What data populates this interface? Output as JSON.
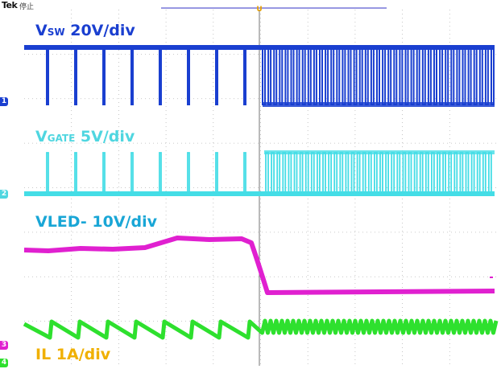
{
  "scope": {
    "brand": "Tek",
    "run_status": "停止",
    "trigger_marker": "U"
  },
  "channels": [
    {
      "id": "ch1",
      "marker": "1",
      "label_main": "V",
      "label_sub": "SW",
      "label_rest": " 20V/div",
      "color": "#1a3fd0"
    },
    {
      "id": "ch2",
      "marker": "2",
      "label_main": "V",
      "label_sub": "GATE",
      "label_rest": " 5V/div",
      "color": "#4fd6e0"
    },
    {
      "id": "ch3",
      "marker": "3",
      "label_main": "VLED- 10V/div",
      "label_sub": "",
      "label_rest": "",
      "color": "#e020d0"
    },
    {
      "id": "ch4",
      "marker": "4",
      "label_main": "IL 1A/div",
      "label_sub": "",
      "label_rest": "",
      "color": "#f0b000"
    }
  ],
  "colors": {
    "grid": "#b8b8b8",
    "il_trace": "#2ee02e",
    "vled_trace": "#e020d0",
    "vsw_trace": "#1a3fd0",
    "vgate_trace": "#44dde6"
  }
}
